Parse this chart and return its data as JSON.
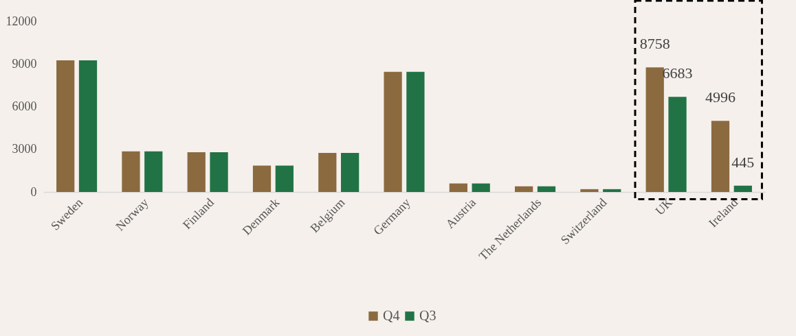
{
  "chart_data": {
    "type": "bar",
    "categories": [
      "Sweden",
      "Norway",
      "Finland",
      "Denmark",
      "Belgium",
      "Germany",
      "Austria",
      "The Netherlands",
      "Switzerland",
      "UK",
      "Ireland"
    ],
    "series": [
      {
        "name": "Q4",
        "color": "#8b6a40",
        "values": [
          9250,
          2850,
          2800,
          1850,
          2750,
          8450,
          600,
          400,
          200,
          8758,
          4996
        ],
        "value_labels": [
          null,
          null,
          null,
          null,
          null,
          null,
          null,
          null,
          null,
          "8758",
          "4996"
        ]
      },
      {
        "name": "Q3",
        "color": "#217346",
        "values": [
          9250,
          2850,
          2800,
          1850,
          2750,
          8450,
          600,
          400,
          200,
          6683,
          445
        ],
        "value_labels": [
          null,
          null,
          null,
          null,
          null,
          null,
          null,
          null,
          null,
          "6683",
          "445"
        ]
      }
    ],
    "ylim": [
      0,
      12000
    ],
    "yticks": [
      0,
      {
        "value": 3000,
        "label": "3000"
      },
      {
        "value": 6000,
        "label": "6000"
      },
      {
        "value": 9000,
        "label": "9000"
      },
      {
        "value": 12000,
        "label": "12000"
      }
    ],
    "grid": false,
    "legend": "bottom"
  }
}
